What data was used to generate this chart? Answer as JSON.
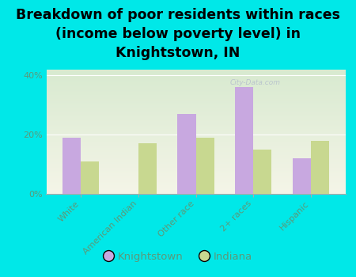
{
  "title": "Breakdown of poor residents within races\n(income below poverty level) in\nKnightstown, IN",
  "categories": [
    "White",
    "American Indian",
    "Other race",
    "2+ races",
    "Hispanic"
  ],
  "knightstown_values": [
    19,
    0,
    27,
    36,
    12
  ],
  "indiana_values": [
    11,
    17,
    19,
    15,
    18
  ],
  "knightstown_color": "#c8a8e0",
  "indiana_color": "#c8d890",
  "background_color": "#00e8e8",
  "ylim": [
    0,
    42
  ],
  "yticks": [
    0,
    20,
    40
  ],
  "ytick_labels": [
    "0%",
    "20%",
    "40%"
  ],
  "bar_width": 0.32,
  "legend_labels": [
    "Knightstown",
    "Indiana"
  ],
  "title_fontsize": 12.5,
  "tick_fontsize": 8,
  "legend_fontsize": 9.5,
  "tick_color": "#5a9a7a",
  "label_color": "#5a9a7a"
}
